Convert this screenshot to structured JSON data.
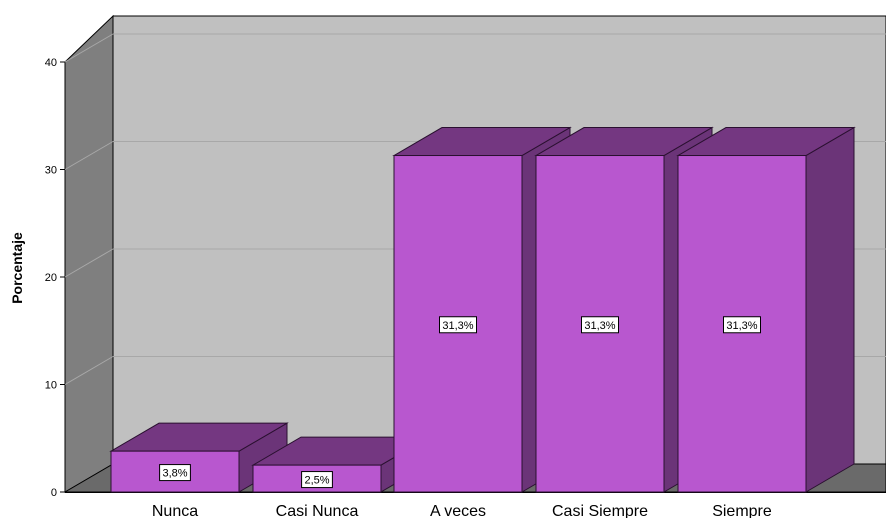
{
  "chart_data": {
    "type": "bar",
    "categories": [
      "Nunca",
      "Casi Nunca",
      "A veces",
      "Casi Siempre",
      "Siempre"
    ],
    "values": [
      3.8,
      2.5,
      31.3,
      31.3,
      31.3
    ],
    "data_labels": [
      "3,8%",
      "2,5%",
      "31,3%",
      "31,3%",
      "31,3%"
    ],
    "title": "",
    "xlabel": "",
    "ylabel": "Porcentaje",
    "ylim": [
      0,
      40
    ],
    "yticks": [
      "0",
      "10",
      "20",
      "30",
      "40"
    ],
    "grid": true,
    "legend": "none",
    "colors": {
      "bar_front": "#b857cf",
      "bar_top": "#743781",
      "bar_side": "#6b3478",
      "back_wall": "#c0c0c0",
      "left_wall": "#7f7f7f",
      "floor": "#6a6a6a"
    }
  }
}
